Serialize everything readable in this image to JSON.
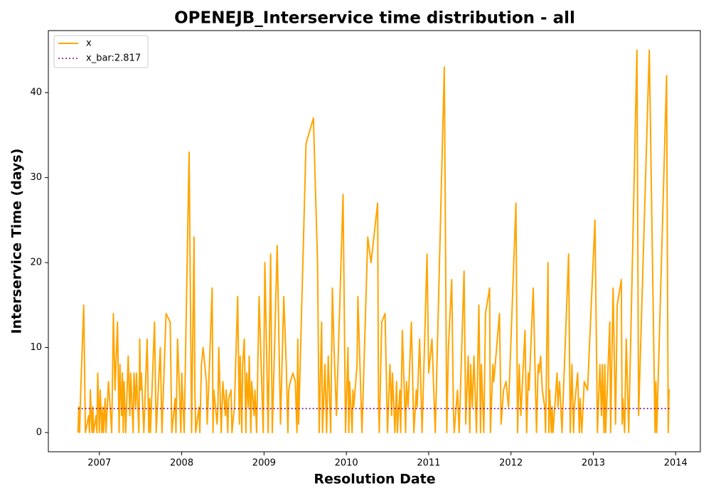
{
  "chart_data": {
    "type": "line",
    "title": "OPENEJB_Interservice time distribution - all",
    "xlabel": "Resolution Date",
    "ylabel": "Interservice Time (days)",
    "xlim": [
      2006.38,
      2014.3
    ],
    "ylim": [
      -2.26,
      47.3
    ],
    "xticks": [
      2007,
      2008,
      2009,
      2010,
      2011,
      2012,
      2013,
      2014
    ],
    "yticks": [
      0,
      10,
      20,
      30,
      40
    ],
    "legend": "upper left",
    "series": [
      {
        "name": "x",
        "color": "#ffa500",
        "linestyle": "solid",
        "x": [
          2006.74,
          2006.75,
          2006.76,
          2006.77,
          2006.81,
          2006.83,
          2006.87,
          2006.88,
          2006.89,
          2006.91,
          2006.92,
          2006.93,
          2006.96,
          2006.97,
          2006.98,
          2007.0,
          2007.01,
          2007.03,
          2007.04,
          2007.05,
          2007.07,
          2007.08,
          2007.11,
          2007.15,
          2007.17,
          2007.19,
          2007.22,
          2007.24,
          2007.25,
          2007.27,
          2007.28,
          2007.29,
          2007.3,
          2007.32,
          2007.35,
          2007.37,
          2007.38,
          2007.41,
          2007.42,
          2007.44,
          2007.45,
          2007.48,
          2007.49,
          2007.5,
          2007.51,
          2007.54,
          2007.58,
          2007.6,
          2007.61,
          2007.62,
          2007.67,
          2007.69,
          2007.74,
          2007.76,
          2007.81,
          2007.86,
          2007.88,
          2007.92,
          2007.93,
          2007.95,
          2007.99,
          2008.0,
          2008.03,
          2008.09,
          2008.12,
          2008.15,
          2008.16,
          2008.17,
          2008.21,
          2008.22,
          2008.24,
          2008.26,
          2008.3,
          2008.31,
          2008.33,
          2008.37,
          2008.38,
          2008.39,
          2008.43,
          2008.44,
          2008.45,
          2008.48,
          2008.5,
          2008.53,
          2008.54,
          2008.56,
          2008.57,
          2008.6,
          2008.61,
          2008.64,
          2008.68,
          2008.7,
          2008.71,
          2008.73,
          2008.74,
          2008.76,
          2008.78,
          2008.79,
          2008.81,
          2008.82,
          2008.84,
          2008.85,
          2008.88,
          2008.89,
          2008.91,
          2008.94,
          2008.99,
          2009.01,
          2009.05,
          2009.08,
          2009.1,
          2009.16,
          2009.2,
          2009.24,
          2009.27,
          2009.29,
          2009.3,
          2009.32,
          2009.35,
          2009.38,
          2009.4,
          2009.41,
          2009.42,
          2009.51,
          2009.6,
          2009.65,
          2009.67,
          2009.7,
          2009.71,
          2009.74,
          2009.76,
          2009.78,
          2009.81,
          2009.83,
          2009.85,
          2009.88,
          2009.92,
          2009.96,
          2009.99,
          2010.02,
          2010.03,
          2010.04,
          2010.07,
          2010.08,
          2010.09,
          2010.13,
          2010.14,
          2010.19,
          2010.26,
          2010.3,
          2010.38,
          2010.39,
          2010.4,
          2010.43,
          2010.47,
          2010.5,
          2010.53,
          2010.55,
          2010.56,
          2010.59,
          2010.61,
          2010.62,
          2010.65,
          2010.66,
          2010.68,
          2010.72,
          2010.73,
          2010.75,
          2010.79,
          2010.82,
          2010.85,
          2010.86,
          2010.89,
          2010.92,
          2010.98,
          2011.0,
          2011.04,
          2011.08,
          2011.19,
          2011.22,
          2011.24,
          2011.28,
          2011.3,
          2011.31,
          2011.35,
          2011.37,
          2011.38,
          2011.43,
          2011.45,
          2011.48,
          2011.5,
          2011.51,
          2011.53,
          2011.55,
          2011.58,
          2011.61,
          2011.63,
          2011.64,
          2011.67,
          2011.69,
          2011.74,
          2011.75,
          2011.78,
          2011.79,
          2011.8,
          2011.86,
          2011.88,
          2011.91,
          2011.94,
          2011.97,
          2012.06,
          2012.08,
          2012.1,
          2012.12,
          2012.17,
          2012.19,
          2012.21,
          2012.22,
          2012.27,
          2012.31,
          2012.33,
          2012.34,
          2012.36,
          2012.38,
          2012.41,
          2012.42,
          2012.45,
          2012.46,
          2012.47,
          2012.49,
          2012.5,
          2012.51,
          2012.56,
          2012.57,
          2012.59,
          2012.62,
          2012.63,
          2012.7,
          2012.72,
          2012.74,
          2012.76,
          2012.77,
          2012.81,
          2012.83,
          2012.84,
          2012.86,
          2012.89,
          2012.93,
          2013.02,
          2013.05,
          2013.08,
          2013.1,
          2013.11,
          2013.13,
          2013.14,
          2013.15,
          2013.2,
          2013.21,
          2013.24,
          2013.27,
          2013.29,
          2013.34,
          2013.35,
          2013.36,
          2013.38,
          2013.4,
          2013.43,
          2013.53,
          2013.55,
          2013.68,
          2013.75,
          2013.76,
          2013.77,
          2013.89,
          2013.91,
          2013.92,
          2013.93
        ],
        "values": [
          0,
          3,
          0,
          4,
          15,
          0,
          2,
          0,
          5,
          0,
          3,
          0,
          2,
          0,
          7,
          0,
          5,
          0,
          3,
          0,
          4,
          0,
          6,
          0,
          14,
          5,
          13,
          0,
          8,
          2,
          7,
          0,
          6,
          0,
          9,
          2,
          7,
          0,
          7,
          3,
          7,
          0,
          11,
          5,
          7,
          0,
          11,
          0,
          4,
          0,
          13,
          0,
          10,
          0,
          14,
          13,
          0,
          4,
          0,
          11,
          0,
          7,
          0,
          33,
          0,
          23,
          5,
          0,
          3,
          0,
          8,
          10,
          6,
          1,
          6,
          17,
          0,
          5,
          1,
          3,
          10,
          0,
          6,
          2,
          5,
          0,
          4,
          5,
          0,
          3,
          16,
          1,
          9,
          0,
          8,
          11,
          0,
          7,
          3,
          9,
          0,
          6,
          2,
          5,
          0,
          16,
          0,
          20,
          0,
          21,
          0,
          22,
          1,
          16,
          8,
          0,
          5,
          6,
          7,
          6,
          0,
          11,
          1,
          34,
          37,
          20,
          0,
          13,
          0,
          8,
          0,
          9,
          0,
          17,
          10,
          2,
          15,
          28,
          0,
          10,
          0,
          6,
          0,
          5,
          3,
          8,
          16,
          0,
          23,
          20,
          27,
          4,
          0,
          13,
          14,
          0,
          8,
          2,
          7,
          0,
          6,
          0,
          5,
          0,
          12,
          0,
          6,
          3,
          13,
          0,
          5,
          3,
          11,
          0,
          21,
          7,
          11,
          0,
          43,
          0,
          10,
          18,
          3,
          0,
          5,
          0,
          3,
          19,
          1,
          9,
          0,
          8,
          3,
          9,
          0,
          15,
          0,
          8,
          0,
          14,
          17,
          0,
          8,
          6,
          7,
          14,
          1,
          5,
          6,
          3,
          27,
          0,
          8,
          2,
          12,
          0,
          7,
          5,
          17,
          0,
          8,
          7,
          9,
          5,
          3,
          0,
          20,
          0,
          5,
          0,
          3,
          0,
          7,
          3,
          6,
          0,
          3,
          21,
          0,
          8,
          0,
          3,
          7,
          0,
          4,
          0,
          6,
          5,
          25,
          0,
          8,
          2,
          8,
          0,
          8,
          0,
          13,
          0,
          17,
          1,
          15,
          18,
          1,
          4,
          0,
          11,
          0,
          45,
          2,
          45,
          0,
          6,
          0,
          42,
          0,
          5,
          5
        ]
      },
      {
        "name": "x_bar:2.817",
        "color": "#800080",
        "linestyle": "dotted",
        "x": [
          2006.74,
          2013.93
        ],
        "values": [
          2.817,
          2.817
        ]
      }
    ]
  }
}
